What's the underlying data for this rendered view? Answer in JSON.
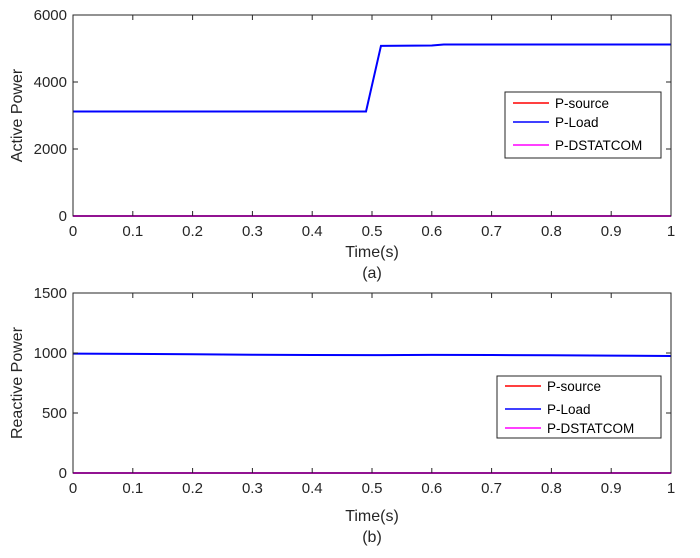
{
  "chart_data": [
    {
      "type": "line",
      "caption": "(a)",
      "xlabel": "Time(s)",
      "ylabel": "Active Power",
      "xlim": [
        0,
        1
      ],
      "ylim": [
        0,
        6000
      ],
      "xticks": [
        0,
        0.1,
        0.2,
        0.3,
        0.4,
        0.5,
        0.6,
        0.7,
        0.8,
        0.9,
        1
      ],
      "xtick_labels": [
        "0",
        "0.1",
        "0.2",
        "0.3",
        "0.4",
        "0.5",
        "0.6",
        "0.7",
        "0.8",
        "0.9",
        "1"
      ],
      "yticks": [
        0,
        2000,
        4000,
        6000
      ],
      "ytick_labels": [
        "0",
        "2000",
        "4000",
        "6000"
      ],
      "grid": false,
      "legend_position": "right",
      "series": [
        {
          "name": "P-source",
          "color": "#ff0000",
          "x": [
            0,
            1
          ],
          "y": [
            0,
            0
          ]
        },
        {
          "name": "P-Load",
          "color": "#0000ff",
          "x": [
            0,
            0.49,
            0.515,
            0.6,
            0.62,
            1
          ],
          "y": [
            3120,
            3120,
            5080,
            5090,
            5120,
            5120
          ]
        },
        {
          "name": "P-DSTATCOM",
          "color": "#ff00ff",
          "x": [
            0,
            1
          ],
          "y": [
            0,
            0
          ]
        }
      ]
    },
    {
      "type": "line",
      "caption": "(b)",
      "xlabel": "Time(s)",
      "ylabel": "Reactive Power",
      "xlim": [
        0,
        1
      ],
      "ylim": [
        0,
        1500
      ],
      "xticks": [
        0,
        0.1,
        0.2,
        0.3,
        0.4,
        0.5,
        0.6,
        0.7,
        0.8,
        0.9,
        1
      ],
      "xtick_labels": [
        "0",
        "0.1",
        "0.2",
        "0.3",
        "0.4",
        "0.5",
        "0.6",
        "0.7",
        "0.8",
        "0.9",
        "1"
      ],
      "yticks": [
        0,
        500,
        1000,
        1500
      ],
      "ytick_labels": [
        "0",
        "500",
        "1000",
        "1500"
      ],
      "grid": false,
      "legend_position": "lower-right",
      "series": [
        {
          "name": "P-source",
          "color": "#ff0000",
          "x": [
            0,
            1
          ],
          "y": [
            0,
            0
          ]
        },
        {
          "name": "P-Load",
          "color": "#0000ff",
          "x": [
            0,
            0.1,
            0.2,
            0.25,
            0.3,
            0.4,
            0.5,
            0.6,
            0.7,
            0.8,
            0.9,
            1
          ],
          "y": [
            995,
            993,
            990,
            988,
            985,
            983,
            982,
            984,
            983,
            981,
            978,
            975
          ]
        },
        {
          "name": "P-DSTATCOM",
          "color": "#ff00ff",
          "x": [
            0,
            1
          ],
          "y": [
            0,
            0
          ]
        }
      ]
    }
  ]
}
